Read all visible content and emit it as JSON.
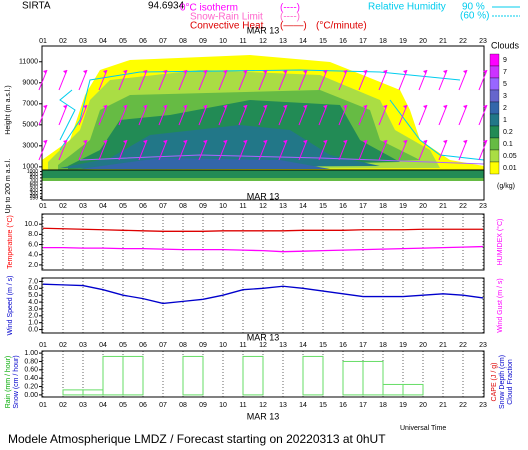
{
  "header": {
    "station": "SIRTA",
    "coords": "94.6934",
    "isotherm": "0°C isotherm",
    "snow_rain": "Snow-Rain Limit",
    "convective": "Convective Heat",
    "legend_dash": "(----)",
    "legend_solid": "(——)",
    "conv_unit": "(°C/minute)",
    "rh": "Relative Humidity",
    "rh90": "90 %",
    "rh60": "(60 %)"
  },
  "date": "MAR 13",
  "hours": [
    "01",
    "02",
    "03",
    "04",
    "05",
    "06",
    "07",
    "08",
    "09",
    "10",
    "11",
    "12",
    "13",
    "14",
    "15",
    "16",
    "17",
    "18",
    "19",
    "20",
    "21",
    "22",
    "23"
  ],
  "x_label": "Universal Time",
  "footer": "Modele Atmospherique LMDZ / Forecast starting on 20220313 at 0hUT",
  "chart_data": [
    {
      "type": "contour",
      "y_label": "Height (m a.s.l.)",
      "y_label_low": "Up to 200 m a.s.l.",
      "ylim": [
        700,
        12500
      ],
      "yticks": [
        1000,
        3000,
        5000,
        7000,
        9000,
        11000
      ],
      "ylim_low": [
        100,
        1050
      ],
      "yticks_low": [
        1000,
        900,
        800,
        700,
        600,
        500,
        400,
        300,
        200,
        150
      ],
      "colorbar_title": "Clouds",
      "colorbar_unit": "(g/kg)",
      "colorbar_labels": [
        "9",
        "7",
        "5",
        "3",
        "2",
        "1",
        "0.2",
        "0.1",
        "0.05",
        "0.01"
      ],
      "colorbar_colors": [
        "#ff00ff",
        "#cc33ff",
        "#9966ff",
        "#6666cc",
        "#3366aa",
        "#227788",
        "#228b55",
        "#66bb44",
        "#aadd44",
        "#ffff00"
      ]
    },
    {
      "type": "line",
      "y_label": {
        "text": "Temperature (°C)",
        "color": "#ff0000"
      },
      "y2_label": {
        "text": "HUMIDEX (°C)",
        "color": "#ff00ff"
      },
      "ylim": [
        1,
        12
      ],
      "yticks": [
        {
          "value": 2,
          "label": "2.0"
        },
        {
          "value": 4,
          "label": "4.0"
        },
        {
          "value": 6,
          "label": "6.0"
        },
        {
          "value": 8,
          "label": "8.0"
        },
        {
          "value": 10,
          "label": "10.0"
        }
      ],
      "series": [
        {
          "color": "#dd0000",
          "values": [
            9.2,
            9.1,
            9.0,
            8.9,
            8.8,
            8.7,
            8.6,
            8.6,
            8.6,
            8.7,
            8.7,
            8.7,
            8.7,
            8.8,
            8.8,
            8.8,
            8.9,
            8.9,
            8.9,
            9.0,
            9.0,
            9.0,
            9.0
          ]
        },
        {
          "color": "#ff00ff",
          "values": [
            5.4,
            5.4,
            5.3,
            5.3,
            5.2,
            5.2,
            5.1,
            5.0,
            5.0,
            5.0,
            4.9,
            4.8,
            4.6,
            4.7,
            4.8,
            4.9,
            5.0,
            5.1,
            5.2,
            5.3,
            5.4,
            5.5,
            5.6
          ]
        }
      ]
    },
    {
      "type": "line",
      "y_label": {
        "text": "Wind Speed (m / s)",
        "color": "#0000cc"
      },
      "y2_label": {
        "text": "Wind Gust (m / s)",
        "color": "#ff00ff"
      },
      "ylim": [
        -0.5,
        7.5
      ],
      "yticks": [
        {
          "value": 0,
          "label": "0.0"
        },
        {
          "value": 1,
          "label": "1.0"
        },
        {
          "value": 2,
          "label": "2.0"
        },
        {
          "value": 3,
          "label": "3.0"
        },
        {
          "value": 4,
          "label": "4.0"
        },
        {
          "value": 5,
          "label": "5.0"
        },
        {
          "value": 6,
          "label": "6.0"
        },
        {
          "value": 7,
          "label": "7.0"
        }
      ],
      "series": [
        {
          "color": "#0000cc",
          "values": [
            6.6,
            6.5,
            6.4,
            5.8,
            5.0,
            4.5,
            3.8,
            4.1,
            4.4,
            5.0,
            5.8,
            6.0,
            6.3,
            6.0,
            5.6,
            5.2,
            4.8,
            4.8,
            4.8,
            5.0,
            5.2,
            5.0,
            4.6
          ]
        }
      ]
    },
    {
      "type": "step",
      "y_labels": [
        {
          "text": "Rain (mm / hour)",
          "color": "#00aa00"
        },
        {
          "text": "Snow (cm / hour)",
          "color": "#0000cc"
        }
      ],
      "y2_labels": [
        {
          "text": "CAPE (J / g)",
          "color": "#dd0000"
        },
        {
          "text": "Snow Depth (cm)",
          "color": "#0000cc"
        },
        {
          "text": "Cloud Fraction",
          "color": "#0000cc"
        }
      ],
      "ylim": [
        -0.05,
        1.05
      ],
      "yticks": [
        {
          "value": 0,
          "label": "0.00"
        },
        {
          "value": 0.2,
          "label": "0.20"
        },
        {
          "value": 0.4,
          "label": "0.40"
        },
        {
          "value": 0.6,
          "label": "0.60"
        },
        {
          "value": 0.8,
          "label": "0.80"
        },
        {
          "value": 1,
          "label": "1.00"
        }
      ],
      "series": [
        {
          "color": "#66dd66",
          "values": [
            0,
            0.12,
            0.12,
            0.92,
            0.92,
            0,
            0,
            0.92,
            0,
            0,
            0.92,
            0,
            0,
            0.92,
            0,
            0.8,
            0.8,
            0.25,
            0.25,
            0,
            0,
            0,
            0
          ]
        }
      ]
    }
  ]
}
